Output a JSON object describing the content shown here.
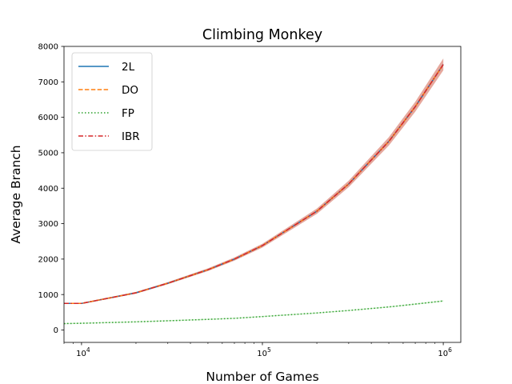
{
  "chart_data": {
    "type": "line",
    "title": "Climbing Monkey",
    "xlabel": "Number of Games",
    "ylabel": "Average Branch",
    "xscale": "log",
    "xlim": [
      8000,
      1250000
    ],
    "ylim": [
      -350,
      8000
    ],
    "x_ticks": [
      {
        "value": 10000,
        "base": "10",
        "exp": "4"
      },
      {
        "value": 100000,
        "base": "10",
        "exp": "5"
      },
      {
        "value": 1000000,
        "base": "10",
        "exp": "6"
      }
    ],
    "y_ticks": [
      0,
      1000,
      2000,
      3000,
      4000,
      5000,
      6000,
      7000,
      8000
    ],
    "legend_position": "top-left",
    "x": [
      8000,
      10000,
      20000,
      30000,
      50000,
      70000,
      100000,
      200000,
      300000,
      500000,
      700000,
      1000000
    ],
    "series": [
      {
        "name": "2L",
        "color": "#1f77b4",
        "dash": "solid",
        "band_color": "#9aa3c0",
        "values": [
          750,
          750,
          1050,
          1320,
          1700,
          2000,
          2380,
          3350,
          4120,
          5320,
          6300,
          7490
        ]
      },
      {
        "name": "DO",
        "color": "#ff7f0e",
        "dash": "dashed",
        "band_color": "#f0a870",
        "values": [
          750,
          750,
          1050,
          1320,
          1700,
          2000,
          2380,
          3350,
          4120,
          5320,
          6300,
          7490
        ]
      },
      {
        "name": "FP",
        "color": "#2ca02c",
        "dash": "dotted",
        "band_color": "#a8dca0",
        "values": [
          180,
          190,
          230,
          260,
          300,
          330,
          380,
          480,
          550,
          650,
          730,
          820
        ]
      },
      {
        "name": "IBR",
        "color": "#d62728",
        "dash": "dashdot",
        "band_color": "#ee9a9a",
        "values": [
          750,
          750,
          1050,
          1320,
          1700,
          2000,
          2380,
          3350,
          4120,
          5320,
          6300,
          7490
        ]
      }
    ]
  }
}
